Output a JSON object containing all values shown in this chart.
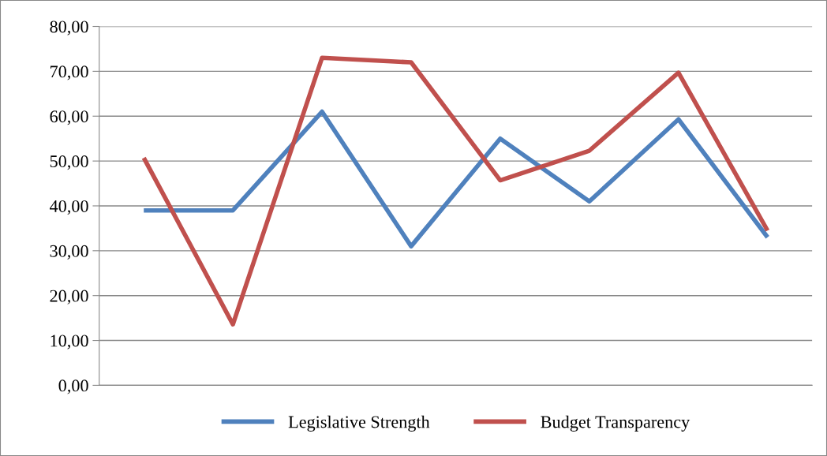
{
  "chart_data": {
    "type": "line",
    "categories": [
      null,
      null,
      null,
      null,
      null,
      null,
      null,
      null
    ],
    "series": [
      {
        "name": "Legislative Strength",
        "color": "#4f81bd",
        "values": [
          39.0,
          39.0,
          61.0,
          31.0,
          55.0,
          41.0,
          59.3,
          33.0
        ]
      },
      {
        "name": "Budget Transparency",
        "color": "#c0504d",
        "values": [
          50.7,
          13.6,
          73.0,
          72.0,
          45.7,
          52.3,
          69.7,
          34.5
        ]
      }
    ],
    "ylim": [
      0,
      80
    ],
    "yticks": [
      {
        "value": 0,
        "label": "0,00"
      },
      {
        "value": 10,
        "label": "10,00"
      },
      {
        "value": 20,
        "label": "20,00"
      },
      {
        "value": 30,
        "label": "30,00"
      },
      {
        "value": 40,
        "label": "40,00"
      },
      {
        "value": 50,
        "label": "50,00"
      },
      {
        "value": 60,
        "label": "60,00"
      },
      {
        "value": 70,
        "label": "70,00"
      },
      {
        "value": 80,
        "label": "80,00"
      }
    ],
    "grid": "y",
    "legend": "bottom",
    "marker": "none",
    "line_style": "solid"
  }
}
